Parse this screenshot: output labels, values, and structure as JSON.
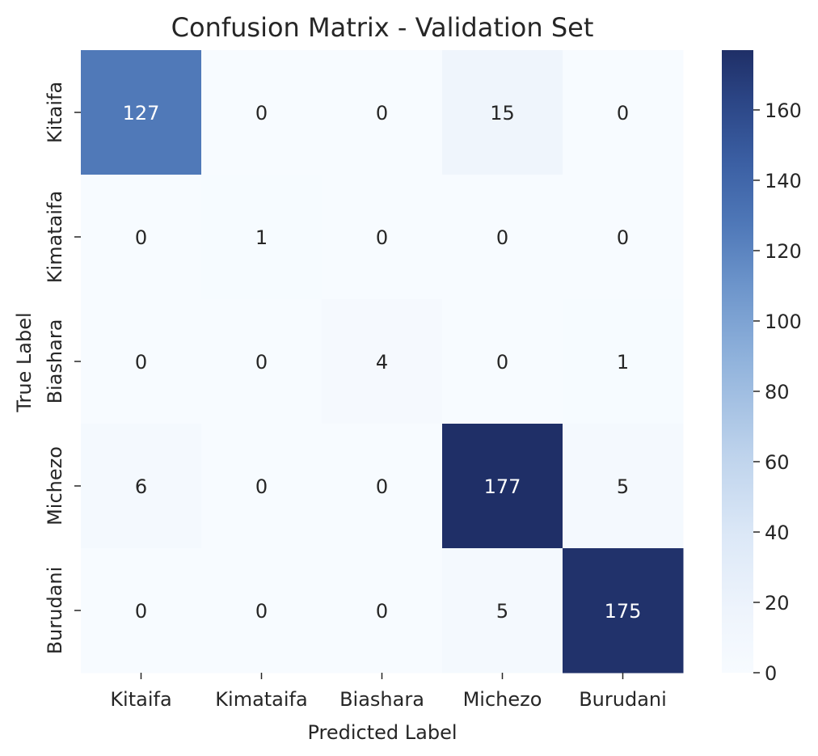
{
  "chart_data": {
    "type": "heatmap",
    "title": "Confusion Matrix - Validation Set",
    "xlabel": "Predicted Label",
    "ylabel": "True Label",
    "x_categories": [
      "Kitaifa",
      "Kimataifa",
      "Biashara",
      "Michezo",
      "Burudani"
    ],
    "y_categories": [
      "Kitaifa",
      "Kimataifa",
      "Biashara",
      "Michezo",
      "Burudani"
    ],
    "values": [
      [
        127,
        0,
        0,
        15,
        0
      ],
      [
        0,
        1,
        0,
        0,
        0
      ],
      [
        0,
        0,
        4,
        0,
        1
      ],
      [
        6,
        0,
        0,
        177,
        5
      ],
      [
        0,
        0,
        0,
        5,
        175
      ]
    ],
    "colorbar": {
      "min": 0,
      "max": 177,
      "ticks": [
        0,
        20,
        40,
        60,
        80,
        100,
        120,
        140,
        160
      ]
    },
    "colormap": {
      "low": "#f7fbff",
      "high": "#1f2f67"
    }
  }
}
